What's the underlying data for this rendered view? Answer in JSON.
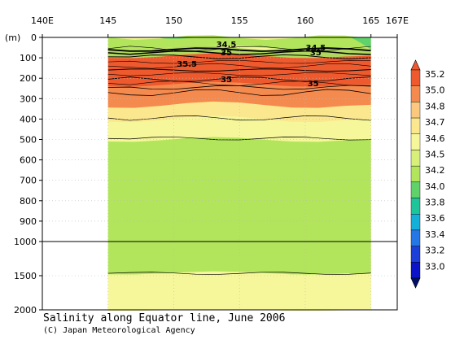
{
  "chart_data": {
    "type": "heatmap",
    "title": "Salinity along Equator line, June 2006",
    "credit": "(C) Japan Meteorological Agency",
    "y_unit_label": "(m)",
    "x_ticks": [
      "140E",
      "145",
      "150",
      "155",
      "160",
      "165",
      "167E"
    ],
    "x_tick_values": [
      140,
      145,
      150,
      155,
      160,
      165,
      167
    ],
    "xlim": [
      140,
      167
    ],
    "data_xrange": [
      145,
      165
    ],
    "y_ticks_upper": [
      0,
      100,
      200,
      300,
      400,
      500,
      600,
      700,
      800,
      900,
      1000
    ],
    "y_ticks_lower": [
      1500,
      2000
    ],
    "ylim": [
      0,
      2000
    ],
    "colorbar_levels": [
      "35.2",
      "35.0",
      "34.8",
      "34.7",
      "34.6",
      "34.5",
      "34.2",
      "34.0",
      "33.8",
      "33.6",
      "33.4",
      "33.2",
      "33.0"
    ],
    "colorbar_colors": [
      "#ee5a2e",
      "#f58a4e",
      "#fbc87e",
      "#fbe78e",
      "#f6f79a",
      "#d8f07a",
      "#b2e55c",
      "#5fd36a",
      "#1ec59b",
      "#14b0d8",
      "#2677e6",
      "#1b3fd8",
      "#0a13c8"
    ],
    "contour_labels": [
      "34.5",
      "35",
      "35.5",
      "35",
      "34.5",
      "35",
      "35"
    ],
    "layers": [
      {
        "salinity": "34.7-34.8",
        "top_m": 260,
        "bottom_m": 400
      },
      {
        "salinity": "34.6-34.7",
        "top_m": 370,
        "bottom_m": 500
      },
      {
        "salinity": "34.5-34.6",
        "top_m": 480,
        "bottom_m": 1460
      },
      {
        "salinity": "34.6-34.7",
        "top_m": 1460,
        "bottom_m": 2000
      },
      {
        "salinity": "34.8-35.0",
        "top_m": 180,
        "bottom_m": 330
      },
      {
        "salinity": ">35.0",
        "top_m": 80,
        "bottom_m": 230
      },
      {
        "salinity": "<34.2",
        "top_m": 0,
        "bottom_m": 50
      }
    ]
  },
  "colors": {
    "frame": "#000000",
    "gridline": "#bbbbbb"
  }
}
